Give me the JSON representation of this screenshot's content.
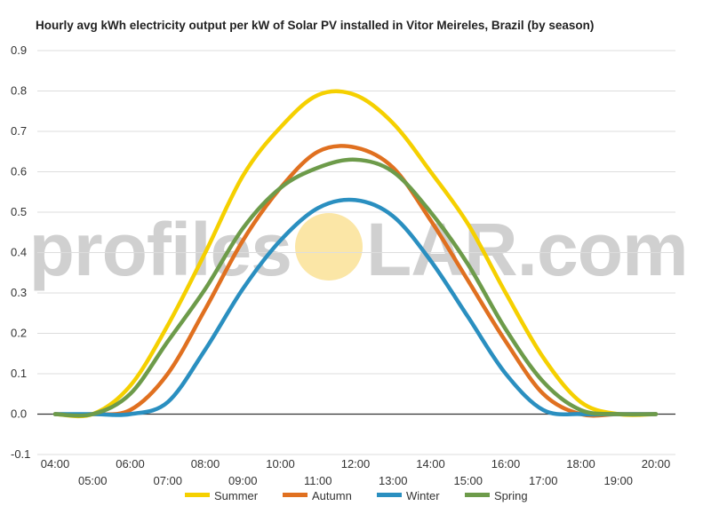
{
  "chart_data": {
    "type": "line",
    "title": "Hourly avg kWh electricity output per kW of Solar PV installed in Vitor Meireles, Brazil (by season)",
    "xlabel": "",
    "ylabel": "",
    "x": [
      "04:00",
      "05:00",
      "06:00",
      "07:00",
      "08:00",
      "09:00",
      "10:00",
      "11:00",
      "12:00",
      "13:00",
      "14:00",
      "15:00",
      "16:00",
      "17:00",
      "18:00",
      "19:00",
      "20:00"
    ],
    "ylim": [
      -0.1,
      0.9
    ],
    "yticks": [
      "-0.1",
      "0.0",
      "0.1",
      "0.2",
      "0.3",
      "0.4",
      "0.5",
      "0.6",
      "0.7",
      "0.8",
      "0.9"
    ],
    "grid": true,
    "legend_position": "bottom",
    "series": [
      {
        "name": "Summer",
        "color": "#f5d000",
        "values": [
          0.0,
          0.0,
          0.07,
          0.22,
          0.4,
          0.59,
          0.71,
          0.79,
          0.79,
          0.72,
          0.6,
          0.47,
          0.3,
          0.14,
          0.03,
          0.0,
          0.0
        ]
      },
      {
        "name": "Autumn",
        "color": "#e07020",
        "values": [
          0.0,
          0.0,
          0.01,
          0.1,
          0.26,
          0.43,
          0.56,
          0.65,
          0.66,
          0.61,
          0.48,
          0.33,
          0.18,
          0.05,
          0.0,
          0.0,
          0.0
        ]
      },
      {
        "name": "Winter",
        "color": "#2a8fc0",
        "values": [
          0.0,
          0.0,
          0.0,
          0.03,
          0.16,
          0.31,
          0.43,
          0.51,
          0.53,
          0.49,
          0.38,
          0.24,
          0.1,
          0.01,
          0.0,
          0.0,
          0.0
        ]
      },
      {
        "name": "Spring",
        "color": "#6d9b4a",
        "values": [
          0.0,
          0.0,
          0.05,
          0.18,
          0.31,
          0.46,
          0.56,
          0.61,
          0.63,
          0.6,
          0.5,
          0.37,
          0.21,
          0.08,
          0.01,
          0.0,
          0.0
        ]
      }
    ]
  },
  "watermark": {
    "text_left": "profiles",
    "text_right": "LAR.com"
  },
  "colors": {
    "grid": "#dddddd",
    "zero_line": "#333333",
    "watermark_sun": "#fbe6a6"
  }
}
